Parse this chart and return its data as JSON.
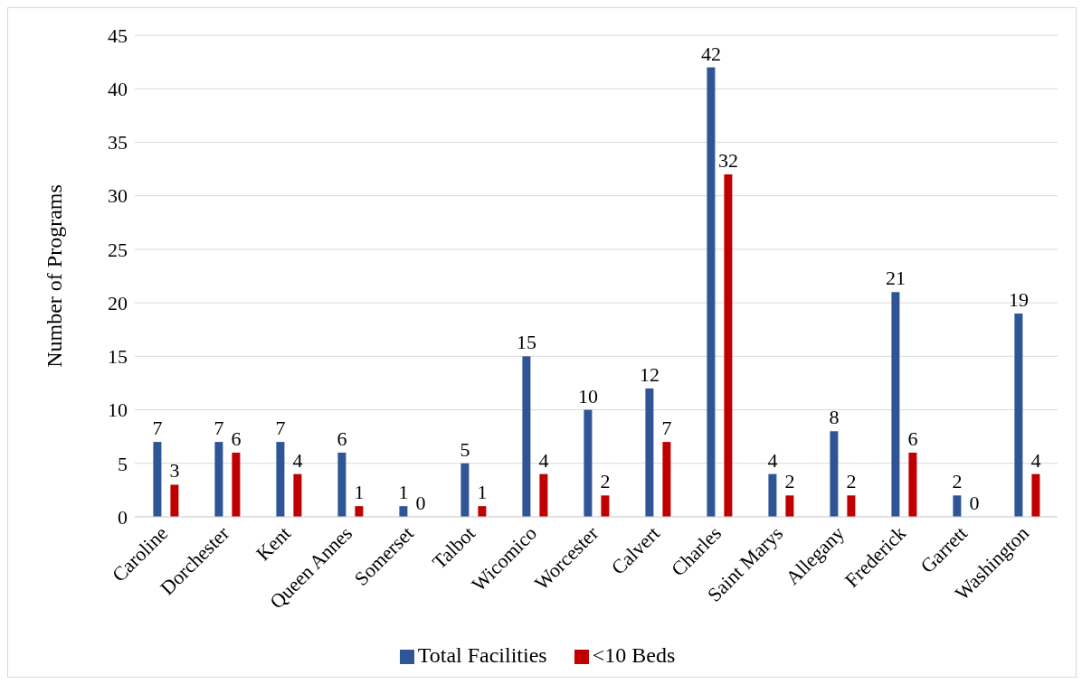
{
  "chart_data": {
    "type": "bar",
    "ylabel": "Number of Programs",
    "categories": [
      "Caroline",
      "Dorchester",
      "Kent",
      "Queen Annes",
      "Somerset",
      "Talbot",
      "Wicomico",
      "Worcester",
      "Calvert",
      "Charles",
      "Saint Marys",
      "Allegany",
      "Frederick",
      "Garrett",
      "Washington"
    ],
    "series": [
      {
        "name": "Total Facilities",
        "color": "#2f5597",
        "values": [
          7,
          7,
          7,
          6,
          1,
          5,
          15,
          10,
          12,
          42,
          4,
          8,
          21,
          2,
          19
        ]
      },
      {
        "name": "<10 Beds",
        "color": "#c00000",
        "values": [
          3,
          6,
          4,
          1,
          0,
          1,
          4,
          2,
          7,
          32,
          2,
          2,
          6,
          0,
          4
        ]
      }
    ],
    "ylim": [
      0,
      45
    ],
    "yticks": [
      0,
      5,
      10,
      15,
      20,
      25,
      30,
      35,
      40,
      45
    ],
    "grid": "y",
    "legend": "bottom",
    "data_labels": true
  }
}
